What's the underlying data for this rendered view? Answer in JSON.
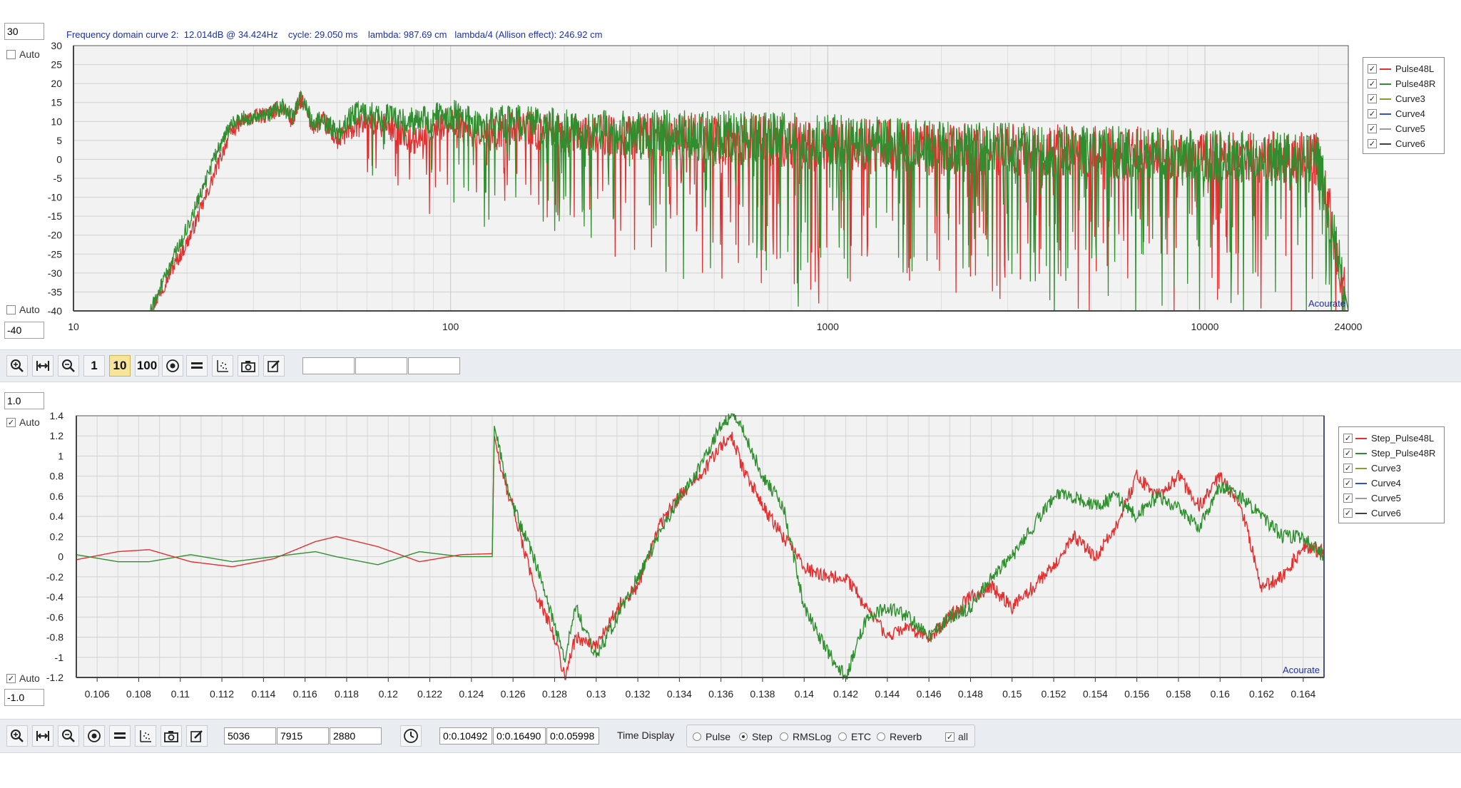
{
  "top_panel": {
    "ymax_input": "30",
    "ymin_input": "-40",
    "auto_top_label": "Auto",
    "auto_bottom_label": "Auto",
    "auto_top_checked": false,
    "auto_bottom_checked": false,
    "info": "Frequency domain curve 2:  12.014dB @ 34.424Hz    cycle: 29.050 ms    lambda: 987.69 cm   lambda/4 (Allison effect): 246.92 cm",
    "watermark": "Acourate",
    "legend": [
      {
        "label": "Pulse48L",
        "color": "#e03030",
        "checked": true
      },
      {
        "label": "Pulse48R",
        "color": "#2f8f2f",
        "checked": true
      },
      {
        "label": "Curve3",
        "color": "#8a9a30",
        "checked": true
      },
      {
        "label": "Curve4",
        "color": "#3050d0",
        "checked": true
      },
      {
        "label": "Curve5",
        "color": "#9a9a9a",
        "checked": true
      },
      {
        "label": "Curve6",
        "color": "#404040",
        "checked": true
      }
    ]
  },
  "top_toolbar": {
    "btn_zoom_in": "zoom-in-icon",
    "btn_fit": "fit-width-icon",
    "btn_zoom_out": "zoom-out-icon",
    "btn_1": "1",
    "btn_10": "10",
    "btn_100": "100",
    "btn_target": "target-icon",
    "btn_lines": "lines-icon",
    "btn_scatter": "scatter-icon",
    "btn_camera": "camera-icon",
    "btn_edit": "edit-icon",
    "fields": [
      "",
      "",
      ""
    ]
  },
  "bottom_panel": {
    "ymax_input": "1.0",
    "ymin_input": "-1.0",
    "auto_top_label": "Auto",
    "auto_bottom_label": "Auto",
    "auto_top_checked": true,
    "auto_bottom_checked": true,
    "watermark": "Acourate",
    "legend": [
      {
        "label": "Step_Pulse48L",
        "color": "#e03030",
        "checked": true
      },
      {
        "label": "Step_Pulse48R",
        "color": "#2f8f2f",
        "checked": true
      },
      {
        "label": "Curve3",
        "color": "#8a9a30",
        "checked": true
      },
      {
        "label": "Curve4",
        "color": "#3050d0",
        "checked": true
      },
      {
        "label": "Curve5",
        "color": "#9a9a9a",
        "checked": true
      },
      {
        "label": "Curve6",
        "color": "#404040",
        "checked": true
      }
    ]
  },
  "bottom_toolbar": {
    "fields": [
      "5036",
      "7915",
      "2880"
    ],
    "time_fields": [
      "0:0.10492",
      "0:0.16490",
      "0:0.05998"
    ],
    "time_display_label": "Time Display",
    "radios": [
      {
        "label": "Pulse",
        "selected": false
      },
      {
        "label": "Step",
        "selected": true
      },
      {
        "label": "RMSLog",
        "selected": false
      },
      {
        "label": "ETC",
        "selected": false
      },
      {
        "label": "Reverb",
        "selected": false
      }
    ],
    "all_label": "all",
    "all_checked": true
  },
  "chart_data": [
    {
      "type": "line",
      "xscale": "log",
      "xlim": [
        10,
        24000
      ],
      "ylim": [
        -40,
        30
      ],
      "xticks": [
        "10",
        "100",
        "1000",
        "10000",
        "24000"
      ],
      "yticks": [
        "30",
        "25",
        "20",
        "15",
        "10",
        "5",
        "0",
        "-5",
        "-10",
        "-15",
        "-20",
        "-25",
        "-30",
        "-35",
        "-40"
      ],
      "grid": true,
      "legend": "right",
      "series": [
        {
          "name": "Pulse48L",
          "color": "#e03030",
          "x": [
            16,
            18,
            20,
            22,
            24,
            26,
            28,
            30,
            33,
            36,
            38,
            40,
            43,
            46,
            50,
            55,
            60,
            70,
            80,
            90,
            100,
            120,
            150,
            200,
            300,
            500,
            1000,
            2000,
            5000,
            10000,
            20000,
            24000
          ],
          "y": [
            -40,
            -30,
            -22,
            -12,
            -2,
            7,
            10,
            11,
            12,
            14,
            10,
            16,
            9,
            10,
            5,
            8,
            10,
            8,
            5,
            8,
            10,
            6,
            8,
            7,
            6,
            5,
            4,
            3,
            2,
            1,
            0,
            -40
          ]
        },
        {
          "name": "Pulse48R",
          "color": "#2f8f2f",
          "x": [
            16,
            18,
            20,
            22,
            24,
            26,
            28,
            30,
            33,
            36,
            38,
            40,
            43,
            46,
            50,
            55,
            60,
            70,
            80,
            90,
            100,
            120,
            150,
            200,
            300,
            500,
            1000,
            2000,
            5000,
            10000,
            20000,
            24000
          ],
          "y": [
            -40,
            -28,
            -18,
            -8,
            2,
            9,
            11,
            11,
            12,
            14,
            11,
            16,
            10,
            10,
            7,
            12,
            12,
            11,
            10,
            11,
            12,
            9,
            10,
            8,
            7,
            6,
            5,
            3,
            2,
            1,
            0,
            -40
          ]
        }
      ]
    },
    {
      "type": "line",
      "xlim": [
        0.105,
        0.165
      ],
      "ylim": [
        -1.2,
        1.4
      ],
      "xticks": [
        "0.106",
        "0.108",
        "0.11",
        "0.112",
        "0.114",
        "0.116",
        "0.118",
        "0.12",
        "0.122",
        "0.124",
        "0.126",
        "0.128",
        "0.13",
        "0.132",
        "0.134",
        "0.136",
        "0.138",
        "0.14",
        "0.142",
        "0.144",
        "0.146",
        "0.148",
        "0.15",
        "0.152",
        "0.154",
        "0.156",
        "0.158",
        "0.16",
        "0.162",
        "0.164"
      ],
      "yticks": [
        "1.4",
        "1.2",
        "1",
        "0.8",
        "0.6",
        "0.4",
        "0.2",
        "0",
        "-0.2",
        "-0.4",
        "-0.6",
        "-0.8",
        "-1",
        "-1.2"
      ],
      "grid": true,
      "legend": "right",
      "series": [
        {
          "name": "Step_Pulse48L",
          "color": "#e03030",
          "x": [
            0.105,
            0.107,
            0.1085,
            0.1105,
            0.1125,
            0.1145,
            0.1165,
            0.1175,
            0.1195,
            0.1215,
            0.1235,
            0.125,
            0.1251,
            0.1255,
            0.126,
            0.127,
            0.128,
            0.1285,
            0.129,
            0.13,
            0.131,
            0.132,
            0.133,
            0.134,
            0.135,
            0.136,
            0.1365,
            0.137,
            0.138,
            0.139,
            0.14,
            0.141,
            0.142,
            0.143,
            0.144,
            0.145,
            0.146,
            0.147,
            0.148,
            0.149,
            0.15,
            0.151,
            0.152,
            0.153,
            0.154,
            0.155,
            0.156,
            0.157,
            0.158,
            0.159,
            0.16,
            0.161,
            0.162,
            0.163,
            0.164,
            0.165
          ],
          "y": [
            -0.03,
            0.05,
            0.07,
            -0.05,
            -0.1,
            -0.02,
            0.15,
            0.2,
            0.1,
            -0.05,
            0.02,
            0.03,
            1.2,
            0.8,
            0.5,
            -0.3,
            -0.8,
            -1.2,
            -0.8,
            -0.9,
            -0.5,
            -0.3,
            0.3,
            0.6,
            0.8,
            1.1,
            1.2,
            0.9,
            0.5,
            0.2,
            -0.1,
            -0.2,
            -0.2,
            -0.5,
            -0.8,
            -0.7,
            -0.8,
            -0.6,
            -0.4,
            -0.3,
            -0.5,
            -0.3,
            -0.1,
            0.2,
            0.0,
            0.3,
            0.8,
            0.6,
            0.8,
            0.5,
            0.8,
            0.5,
            -0.3,
            -0.2,
            0.1,
            0.05
          ]
        },
        {
          "name": "Step_Pulse48R",
          "color": "#2f8f2f",
          "x": [
            0.105,
            0.107,
            0.1085,
            0.1105,
            0.1125,
            0.1145,
            0.1165,
            0.1175,
            0.1195,
            0.1215,
            0.1235,
            0.125,
            0.1251,
            0.1255,
            0.126,
            0.127,
            0.128,
            0.1285,
            0.129,
            0.13,
            0.131,
            0.132,
            0.133,
            0.134,
            0.135,
            0.136,
            0.1365,
            0.137,
            0.138,
            0.139,
            0.14,
            0.141,
            0.142,
            0.143,
            0.144,
            0.145,
            0.146,
            0.147,
            0.148,
            0.149,
            0.15,
            0.151,
            0.152,
            0.153,
            0.154,
            0.155,
            0.156,
            0.157,
            0.158,
            0.159,
            0.16,
            0.161,
            0.162,
            0.163,
            0.164,
            0.165
          ],
          "y": [
            0.02,
            -0.05,
            -0.05,
            0.02,
            -0.05,
            0.0,
            0.05,
            0.0,
            -0.08,
            0.05,
            0.0,
            0.0,
            1.3,
            0.9,
            0.5,
            0.0,
            -0.7,
            -1.0,
            -0.5,
            -1.0,
            -0.6,
            -0.2,
            0.2,
            0.6,
            0.9,
            1.3,
            1.4,
            1.3,
            0.8,
            0.5,
            -0.5,
            -0.9,
            -1.2,
            -0.6,
            -0.5,
            -0.6,
            -0.8,
            -0.6,
            -0.5,
            -0.2,
            0.0,
            0.3,
            0.6,
            0.6,
            0.5,
            0.6,
            0.4,
            0.6,
            0.5,
            0.3,
            0.7,
            0.6,
            0.4,
            0.2,
            0.2,
            0.0
          ]
        }
      ]
    }
  ]
}
